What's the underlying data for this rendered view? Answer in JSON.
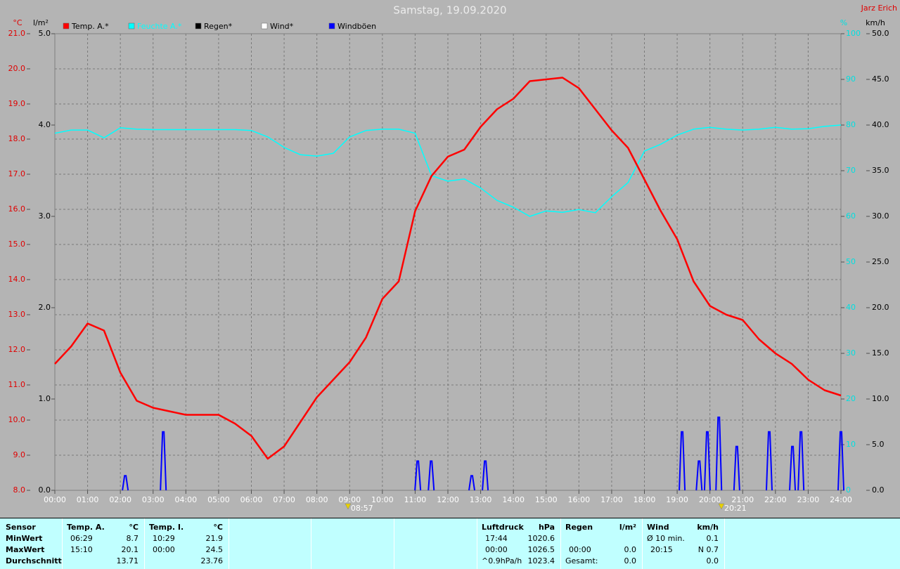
{
  "chart_data": {
    "type": "line",
    "title": "Samstag, 19.09.2020",
    "author": "Jarz Erich",
    "x": [
      0,
      0.5,
      1,
      1.5,
      2,
      2.5,
      3,
      3.5,
      4,
      4.5,
      5,
      5.5,
      6,
      6.5,
      7,
      7.5,
      8,
      8.5,
      9,
      9.5,
      10,
      10.5,
      11,
      11.5,
      12,
      12.5,
      13,
      13.5,
      14,
      14.5,
      15,
      15.5,
      16,
      16.5,
      17,
      17.5,
      18,
      18.5,
      19,
      19.5,
      20,
      20.5,
      21,
      21.5,
      22,
      22.5,
      23,
      23.5,
      24
    ],
    "xlim": [
      0,
      24
    ],
    "xticks": [
      {
        "value": 0,
        "label": "00:00"
      },
      {
        "value": 1,
        "label": "01:00"
      },
      {
        "value": 2,
        "label": "02:00"
      },
      {
        "value": 3,
        "label": "03:00"
      },
      {
        "value": 4,
        "label": "04:00"
      },
      {
        "value": 5,
        "label": "05:00"
      },
      {
        "value": 6,
        "label": "06:00"
      },
      {
        "value": 7,
        "label": "07:00"
      },
      {
        "value": 8,
        "label": "08:00"
      },
      {
        "value": 9,
        "label": "09:00"
      },
      {
        "value": 10,
        "label": "10:00"
      },
      {
        "value": 11,
        "label": "11:00"
      },
      {
        "value": 12,
        "label": "12:00"
      },
      {
        "value": 13,
        "label": "13:00"
      },
      {
        "value": 14,
        "label": "14:00"
      },
      {
        "value": 15,
        "label": "15:00"
      },
      {
        "value": 16,
        "label": "16:00"
      },
      {
        "value": 17,
        "label": "17:00"
      },
      {
        "value": 18,
        "label": "18:00"
      },
      {
        "value": 19,
        "label": "19:00"
      },
      {
        "value": 20,
        "label": "20:00"
      },
      {
        "value": 21,
        "label": "21:00"
      },
      {
        "value": 22,
        "label": "22:00"
      },
      {
        "value": 23,
        "label": "23:00"
      },
      {
        "value": 24,
        "label": "24:00"
      }
    ],
    "ylabel": "°C",
    "ylim": [
      8,
      21
    ],
    "yticks": [
      {
        "value": 8,
        "label": "8.0"
      },
      {
        "value": 9,
        "label": "9.0"
      },
      {
        "value": 10,
        "label": "10.0"
      },
      {
        "value": 11,
        "label": "11.0"
      },
      {
        "value": 12,
        "label": "12.0"
      },
      {
        "value": 13,
        "label": "13.0"
      },
      {
        "value": 14,
        "label": "14.0"
      },
      {
        "value": 15,
        "label": "15.0"
      },
      {
        "value": 16,
        "label": "16.0"
      },
      {
        "value": 17,
        "label": "17.0"
      },
      {
        "value": 18,
        "label": "18.0"
      },
      {
        "value": 19,
        "label": "19.0"
      },
      {
        "value": 20,
        "label": "20.0"
      },
      {
        "value": 21,
        "label": "21.0"
      }
    ],
    "y2label": "l/m²",
    "y2lim": [
      0,
      5
    ],
    "y2ticks": [
      {
        "value": 0,
        "label": "0.0"
      },
      {
        "value": 1,
        "label": "1.0"
      },
      {
        "value": 2,
        "label": "2.0"
      },
      {
        "value": 3,
        "label": "3.0"
      },
      {
        "value": 4,
        "label": "4.0"
      },
      {
        "value": 5,
        "label": "5.0"
      }
    ],
    "y3label": "%",
    "y3lim": [
      0,
      100
    ],
    "y3ticks": [
      0,
      10,
      20,
      30,
      40,
      50,
      60,
      70,
      80,
      90,
      100
    ],
    "y4label": "km/h",
    "y4lim": [
      0,
      50
    ],
    "y4ticks": [
      {
        "value": 0,
        "label": "0.0"
      },
      {
        "value": 5,
        "label": "5.0"
      },
      {
        "value": 10,
        "label": "10.0"
      },
      {
        "value": 15,
        "label": "15.0"
      },
      {
        "value": 20,
        "label": "20.0"
      },
      {
        "value": 25,
        "label": "25.0"
      },
      {
        "value": 30,
        "label": "30.0"
      },
      {
        "value": 35,
        "label": "35.0"
      },
      {
        "value": 40,
        "label": "40.0"
      },
      {
        "value": 45,
        "label": "45.0"
      },
      {
        "value": 50,
        "label": "50.0"
      }
    ],
    "grid": true,
    "series": [
      {
        "name": "Temp. A.*",
        "color": "#ff0000",
        "axis": "y",
        "values": [
          11.6,
          12.1,
          12.75,
          12.55,
          11.35,
          10.55,
          10.35,
          10.25,
          10.15,
          10.15,
          10.15,
          9.9,
          9.55,
          8.9,
          9.25,
          9.95,
          10.65,
          11.15,
          11.65,
          12.35,
          13.45,
          13.95,
          15.95,
          16.95,
          17.5,
          17.7,
          18.35,
          18.85,
          19.15,
          19.65,
          19.7,
          19.75,
          19.45,
          18.85,
          18.25,
          17.75,
          16.85,
          15.95,
          15.15,
          13.95,
          13.25,
          13.0,
          12.85,
          12.3,
          11.9,
          11.6,
          11.15,
          10.85,
          10.7
        ]
      },
      {
        "name": "Feuchte A.*",
        "color": "#00ffff",
        "axis": "y3",
        "values": [
          78.2,
          78.9,
          78.9,
          77.2,
          79.4,
          79.1,
          79.0,
          79.0,
          79.0,
          79.0,
          79.0,
          79.0,
          78.8,
          77.4,
          75.1,
          73.5,
          73.2,
          73.8,
          77.4,
          78.8,
          79.1,
          79.1,
          78.2,
          68.9,
          67.7,
          68.2,
          66.2,
          63.5,
          62.0,
          60.0,
          61.2,
          60.9,
          61.5,
          60.8,
          64.3,
          67.4,
          74.3,
          75.8,
          77.8,
          79.1,
          79.5,
          79.1,
          78.9,
          79.1,
          79.5,
          79.1,
          79.2,
          79.7,
          80.0
        ]
      },
      {
        "name": "Regen*",
        "color": "#000000",
        "axis": "y2"
      },
      {
        "name": "Wind*",
        "color": "#ffffff",
        "axis": "y4"
      },
      {
        "name": "Windböen",
        "color": "#0000ff",
        "axis": "y4",
        "style": "spikes",
        "x": [
          2.15,
          3.31,
          11.08,
          11.49,
          12.73,
          13.14,
          19.15,
          19.67,
          19.92,
          20.27,
          20.82,
          21.81,
          22.52,
          22.78,
          24
        ],
        "values": [
          1.6,
          6.4,
          3.2,
          3.2,
          1.6,
          3.2,
          6.4,
          3.2,
          6.4,
          8.0,
          4.8,
          6.4,
          4.8,
          6.4,
          6.4
        ]
      }
    ],
    "annotations": [
      {
        "x": 8.95,
        "label": "08:57"
      },
      {
        "x": 20.35,
        "label": "20:21"
      }
    ]
  },
  "table": {
    "row_labels": [
      "Sensor",
      "MinWert",
      "MaxWert",
      "Durchschnitt"
    ],
    "groups": [
      {
        "header": "Temp. A.",
        "unit": "°C",
        "rows": [
          [
            "06:29",
            "8.7"
          ],
          [
            "15:10",
            "20.1"
          ],
          [
            null,
            "13.71"
          ]
        ]
      },
      {
        "header": "Temp. I.",
        "unit": "°C",
        "rows": [
          [
            "10:29",
            "21.9"
          ],
          [
            "00:00",
            "24.5"
          ],
          [
            null,
            "23.76"
          ]
        ]
      },
      {
        "header": "Luftdruck",
        "unit": "hPa",
        "rows": [
          [
            "17:44",
            "1020.6"
          ],
          [
            "00:00",
            "1026.5"
          ],
          [
            "^0.9hPa/h",
            "1023.4"
          ]
        ]
      },
      {
        "header": "Regen",
        "unit": "l/m²",
        "rows": [
          [
            null,
            null
          ],
          [
            "00:00",
            "0.0"
          ],
          [
            "Gesamt:",
            "0.0"
          ]
        ]
      },
      {
        "header": "Wind",
        "unit": "km/h",
        "rows": [
          [
            "Ø 10 min.",
            "0.1"
          ],
          [
            "20:15",
            "N 0.7"
          ],
          [
            null,
            "0.0"
          ]
        ]
      }
    ]
  }
}
